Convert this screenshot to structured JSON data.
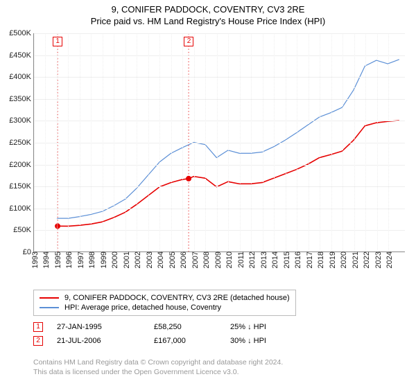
{
  "title": {
    "line1": "9, CONIFER PADDOCK, COVENTRY, CV3 2RE",
    "line2": "Price paid vs. HM Land Registry's House Price Index (HPI)"
  },
  "chart": {
    "type": "line",
    "background_color": "#ffffff",
    "grid_color": "#eeeeee",
    "axis_color": "#888888",
    "x_range": [
      1993,
      2025.5
    ],
    "x_ticks": [
      1993,
      1994,
      1995,
      1996,
      1997,
      1998,
      1999,
      2000,
      2001,
      2002,
      2003,
      2004,
      2005,
      2006,
      2007,
      2008,
      2009,
      2010,
      2011,
      2012,
      2013,
      2014,
      2015,
      2016,
      2017,
      2018,
      2019,
      2020,
      2021,
      2022,
      2023,
      2024
    ],
    "y_range": [
      0,
      500000
    ],
    "y_ticks": [
      0,
      50000,
      100000,
      150000,
      200000,
      250000,
      300000,
      350000,
      400000,
      450000,
      500000
    ],
    "y_tick_labels": [
      "£0",
      "£50K",
      "£100K",
      "£150K",
      "£200K",
      "£250K",
      "£300K",
      "£350K",
      "£400K",
      "£450K",
      "£500K"
    ],
    "vertical_markers": [
      1995.07,
      2006.55
    ],
    "vertical_marker_color": "#e60000",
    "series": [
      {
        "name": "property",
        "label": "9, CONIFER PADDOCK, COVENTRY, CV3 2RE (detached house)",
        "color": "#e60000",
        "line_width": 1.6,
        "points": [
          [
            1995.07,
            58250
          ],
          [
            1996,
            58000
          ],
          [
            1997,
            60000
          ],
          [
            1998,
            63000
          ],
          [
            1999,
            68000
          ],
          [
            2000,
            78000
          ],
          [
            2001,
            90000
          ],
          [
            2002,
            108000
          ],
          [
            2003,
            128000
          ],
          [
            2004,
            148000
          ],
          [
            2005,
            158000
          ],
          [
            2006,
            165000
          ],
          [
            2006.55,
            167000
          ],
          [
            2007,
            172000
          ],
          [
            2008,
            168000
          ],
          [
            2009,
            148000
          ],
          [
            2010,
            160000
          ],
          [
            2011,
            155000
          ],
          [
            2012,
            155000
          ],
          [
            2013,
            158000
          ],
          [
            2014,
            168000
          ],
          [
            2015,
            178000
          ],
          [
            2016,
            188000
          ],
          [
            2017,
            200000
          ],
          [
            2018,
            215000
          ],
          [
            2019,
            222000
          ],
          [
            2020,
            230000
          ],
          [
            2021,
            255000
          ],
          [
            2022,
            288000
          ],
          [
            2023,
            295000
          ],
          [
            2024,
            298000
          ],
          [
            2025,
            300000
          ]
        ],
        "dots": [
          {
            "x": 1995.07,
            "y": 58250
          },
          {
            "x": 2006.55,
            "y": 167000
          }
        ]
      },
      {
        "name": "hpi",
        "label": "HPI: Average price, detached house, Coventry",
        "color": "#5b8fd6",
        "line_width": 1.2,
        "points": [
          [
            1995,
            76000
          ],
          [
            1996,
            76000
          ],
          [
            1997,
            80000
          ],
          [
            1998,
            85000
          ],
          [
            1999,
            92000
          ],
          [
            2000,
            105000
          ],
          [
            2001,
            120000
          ],
          [
            2002,
            145000
          ],
          [
            2003,
            175000
          ],
          [
            2004,
            205000
          ],
          [
            2005,
            225000
          ],
          [
            2006,
            238000
          ],
          [
            2007,
            250000
          ],
          [
            2008,
            245000
          ],
          [
            2009,
            215000
          ],
          [
            2010,
            232000
          ],
          [
            2011,
            225000
          ],
          [
            2012,
            225000
          ],
          [
            2013,
            228000
          ],
          [
            2014,
            240000
          ],
          [
            2015,
            255000
          ],
          [
            2016,
            272000
          ],
          [
            2017,
            290000
          ],
          [
            2018,
            308000
          ],
          [
            2019,
            318000
          ],
          [
            2020,
            330000
          ],
          [
            2021,
            370000
          ],
          [
            2022,
            425000
          ],
          [
            2023,
            438000
          ],
          [
            2024,
            430000
          ],
          [
            2025,
            440000
          ]
        ]
      }
    ]
  },
  "marker_boxes": [
    {
      "n": "1",
      "x": 1995.07,
      "color": "#e60000"
    },
    {
      "n": "2",
      "x": 2006.55,
      "color": "#e60000"
    }
  ],
  "transactions": [
    {
      "n": "1",
      "date": "27-JAN-1995",
      "price": "£58,250",
      "delta": "25% ↓ HPI",
      "color": "#e60000"
    },
    {
      "n": "2",
      "date": "21-JUL-2006",
      "price": "£167,000",
      "delta": "30% ↓ HPI",
      "color": "#e60000"
    }
  ],
  "footer": {
    "line1": "Contains HM Land Registry data © Crown copyright and database right 2024.",
    "line2": "This data is licensed under the Open Government Licence v3.0."
  }
}
